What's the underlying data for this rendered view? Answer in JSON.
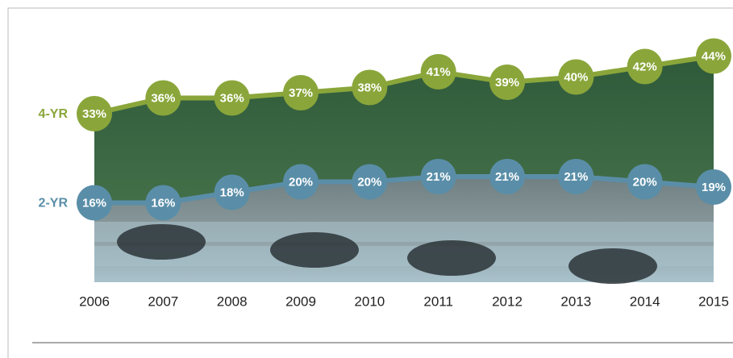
{
  "chart_data": {
    "type": "line",
    "categories": [
      "2006",
      "2007",
      "2008",
      "2009",
      "2010",
      "2011",
      "2012",
      "2013",
      "2014",
      "2015"
    ],
    "ylim": [
      0,
      50
    ],
    "series": [
      {
        "name": "4-YR",
        "color": "#8aa63a",
        "values": [
          33,
          36,
          36,
          37,
          38,
          41,
          39,
          40,
          42,
          44
        ],
        "value_labels": [
          "33%",
          "36%",
          "36%",
          "37%",
          "38%",
          "41%",
          "39%",
          "40%",
          "42%",
          "44%"
        ]
      },
      {
        "name": "2-YR",
        "color": "#5a8ea8",
        "values": [
          16,
          16,
          18,
          20,
          20,
          21,
          21,
          21,
          20,
          19
        ],
        "value_labels": [
          "16%",
          "16%",
          "18%",
          "20%",
          "20%",
          "21%",
          "21%",
          "21%",
          "20%",
          "19%"
        ]
      }
    ]
  }
}
